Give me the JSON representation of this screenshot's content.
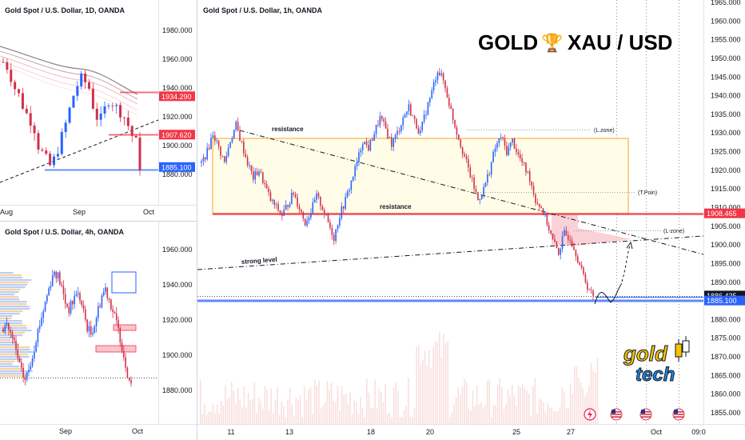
{
  "colors": {
    "up": "#26a69a",
    "up_main": "#2962ff",
    "down": "#d32f4a",
    "red_level": "#f23645",
    "blue_level": "#2962ff",
    "zone_fill": "#fffde7",
    "zone_stroke": "#f5a623",
    "pink_zone": "#f7c6cc",
    "axis_text": "#131722",
    "grid": "#f0f3fa",
    "volume": "#f4c7c3"
  },
  "panels": {
    "daily": {
      "title": "Gold Spot / U.S. Dollar, 1D, OANDA",
      "y_ticks": [
        "1980.000",
        "1960.000",
        "1940.000",
        "1920.000",
        "1900.000",
        "1880.000"
      ],
      "x_ticks": [
        "Aug",
        "Sep",
        "Oct"
      ],
      "price_tags": [
        {
          "value": "1934.290",
          "color": "#f23645"
        },
        {
          "value": "1907.620",
          "color": "#f23645"
        },
        {
          "value": "1885.100",
          "color": "#2962ff"
        }
      ]
    },
    "h4": {
      "title": "Gold Spot / U.S. Dollar, 4h, OANDA",
      "y_ticks": [
        "1960.000",
        "1940.000",
        "1920.000",
        "1900.000",
        "1880.000"
      ],
      "x_ticks": [
        "Sep",
        "Oct"
      ]
    },
    "h1": {
      "title": "Gold Spot / U.S. Dollar, 1h, OANDA",
      "headline_left": "GOLD",
      "headline_icon": "🏆",
      "headline_right": "XAU / USD",
      "y_ticks": [
        "1965.000",
        "1960.000",
        "1955.000",
        "1950.000",
        "1945.000",
        "1940.000",
        "1935.000",
        "1930.000",
        "1925.000",
        "1920.000",
        "1915.000",
        "1910.000",
        "1905.000",
        "1900.000",
        "1895.000",
        "1890.000",
        "1885.000",
        "1880.000",
        "1875.000",
        "1870.000",
        "1865.000",
        "1860.000",
        "1855.000"
      ],
      "x_ticks": [
        "11",
        "13",
        "18",
        "20",
        "25",
        "27",
        "Oct",
        "09:0"
      ],
      "price_tags": [
        {
          "value": "1908.465",
          "color": "#f23645"
        },
        {
          "value": "1886.435",
          "color": "#131722"
        },
        {
          "value": "1885.100",
          "color": "#2962ff"
        }
      ],
      "annotations": {
        "resistance_top": "resistance",
        "resistance_mid": "resistance",
        "strong_level": "strong level",
        "l_zone_1": "(L.zone)",
        "t_poin": "(T.Poin)",
        "l_zone_2": "(L-zone)"
      },
      "logo": {
        "line1": "gold",
        "line2": "tech"
      },
      "icons": [
        "flash-event-icon",
        "us-flag-icon",
        "us-flag-icon",
        "us-flag-icon"
      ]
    }
  },
  "chart_data": [
    {
      "type": "candlestick",
      "title": "Gold Spot / U.S. Dollar, 1D, OANDA",
      "x_ticks": [
        "Aug",
        "Sep",
        "Oct"
      ],
      "ylim": [
        1868,
        1995
      ],
      "levels": [
        1934.29,
        1907.62,
        1885.1
      ],
      "close_path": [
        1958,
        1955,
        1948,
        1940,
        1935,
        1928,
        1922,
        1918,
        1912,
        1900,
        1895,
        1890,
        1886,
        1890,
        1898,
        1906,
        1915,
        1925,
        1935,
        1942,
        1946,
        1944,
        1940,
        1928,
        1920,
        1918,
        1925,
        1932,
        1930,
        1926,
        1924,
        1920,
        1914,
        1907,
        1902,
        1886
      ]
    },
    {
      "type": "candlestick",
      "title": "Gold Spot / U.S. Dollar, 4h, OANDA",
      "x_ticks": [
        "Sep",
        "Oct"
      ],
      "ylim": [
        1870,
        1975
      ],
      "close_path": [
        1915,
        1918,
        1912,
        1906,
        1898,
        1890,
        1886,
        1892,
        1900,
        1910,
        1918,
        1926,
        1934,
        1942,
        1948,
        1945,
        1938,
        1930,
        1926,
        1930,
        1936,
        1932,
        1924,
        1916,
        1912,
        1918,
        1926,
        1934,
        1938,
        1932,
        1925,
        1918,
        1910,
        1900,
        1890,
        1884
      ]
    },
    {
      "type": "candlestick",
      "title": "Gold Spot / U.S. Dollar, 1h, OANDA",
      "x_ticks": [
        "11",
        "13",
        "18",
        "20",
        "25",
        "27",
        "Oct",
        "09:0"
      ],
      "ylim": [
        1853,
        1967
      ],
      "levels": [
        1908.465,
        1886.435,
        1885.1
      ],
      "zone": [
        1909,
        1928.5
      ],
      "close_path": [
        1922,
        1925,
        1930,
        1926,
        1922,
        1928,
        1932,
        1927,
        1922,
        1918,
        1920,
        1916,
        1912,
        1910,
        1908,
        1911,
        1914,
        1910,
        1906,
        1909,
        1913,
        1910,
        1906,
        1902,
        1908,
        1912,
        1917,
        1922,
        1928,
        1926,
        1930,
        1934,
        1931,
        1927,
        1930,
        1934,
        1937,
        1933,
        1930,
        1936,
        1941,
        1947,
        1944,
        1938,
        1932,
        1927,
        1922,
        1917,
        1912,
        1915,
        1920,
        1926,
        1929,
        1925,
        1928,
        1924,
        1921,
        1918,
        1912,
        1910,
        1906,
        1901,
        1898,
        1903,
        1902,
        1898,
        1893,
        1889,
        1886
      ]
    }
  ]
}
